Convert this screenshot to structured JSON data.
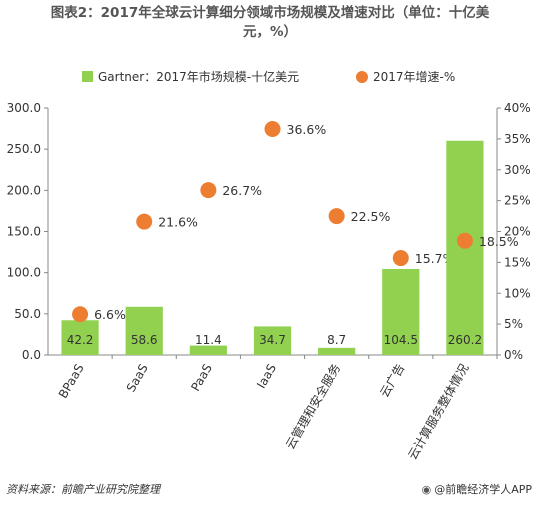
{
  "title": {
    "line1": "图表2：2017年全球云计算细分领域市场规模及增速对比（单位：十亿美",
    "line2": "元，%）"
  },
  "legend": {
    "bar_label": "Gartner：2017年市场规模-十亿美元",
    "dot_label": "2017年增速-%"
  },
  "footer": {
    "source": "资料来源：前瞻产业研究院整理",
    "brand_icon": "eye-logo-icon",
    "brand": "@前瞻经济学人APP"
  },
  "colors": {
    "bar": "#92d050",
    "dot": "#ed7d31"
  },
  "chart_data": {
    "type": "bar",
    "categories": [
      "BPaaS",
      "SaaS",
      "PaaS",
      "IaaS",
      "云管理和安全服务",
      "云广告",
      "云计算服务整体情况"
    ],
    "series": [
      {
        "name": "Gartner：2017年市场规模-十亿美元",
        "type": "bar",
        "axis": "left",
        "values": [
          42.2,
          58.6,
          11.4,
          34.7,
          8.7,
          104.5,
          260.2
        ],
        "labels": [
          "42.2",
          "58.6",
          "11.4",
          "34.7",
          "8.7",
          "104.5",
          "260.2"
        ]
      },
      {
        "name": "2017年增速-%",
        "type": "scatter",
        "axis": "right",
        "values": [
          6.6,
          21.6,
          26.7,
          36.6,
          22.5,
          15.7,
          18.5
        ],
        "labels": [
          "6.6%",
          "21.6%",
          "26.7%",
          "36.6%",
          "22.5%",
          "15.7%",
          "18.5%"
        ]
      }
    ],
    "left_axis": {
      "min": 0,
      "max": 300,
      "ticks": [
        0,
        50,
        100,
        150,
        200,
        250,
        300
      ],
      "tick_labels": [
        "0.0",
        "50.0",
        "100.0",
        "150.0",
        "200.0",
        "250.0",
        "300.0"
      ]
    },
    "right_axis": {
      "min": 0,
      "max": 40,
      "ticks": [
        0,
        5,
        10,
        15,
        20,
        25,
        30,
        35,
        40
      ],
      "tick_labels": [
        "0%",
        "5%",
        "10%",
        "15%",
        "20%",
        "25%",
        "30%",
        "35%",
        "40%"
      ]
    },
    "grid": false,
    "legend_position": "top"
  }
}
